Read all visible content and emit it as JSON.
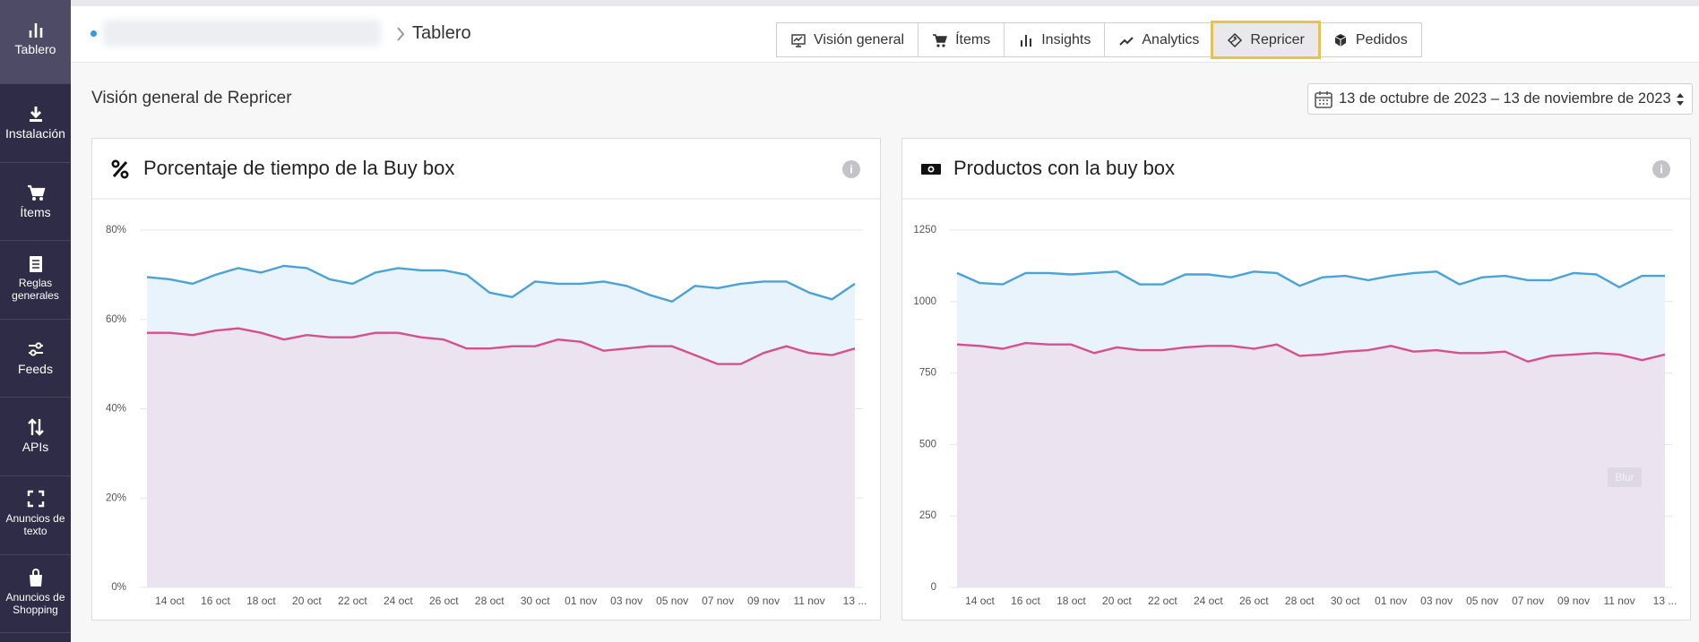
{
  "sidebar": [
    "Tablero",
    "Instalación",
    "Ítems",
    "Reglas generales",
    "Feeds",
    "APIs",
    "Anuncios de texto",
    "Anuncios de Shopping"
  ],
  "active_sidebar": 0,
  "breadcrumb": "Tablero",
  "tabs": [
    "Visión general",
    "Ítems",
    "Insights",
    "Analytics",
    "Repricer",
    "Pedidos"
  ],
  "active_tab": 4,
  "section_title": "Visión general de Repricer",
  "date_range": "13 de octubre de 2023 – 13 de noviembre de 2023",
  "chart_data": [
    {
      "type": "area",
      "title": "Porcentaje de tiempo de la Buy box",
      "categories": [
        null,
        "14 oct",
        null,
        "16 oct",
        null,
        "18 oct",
        null,
        "20 oct",
        null,
        "22 oct",
        null,
        "24 oct",
        null,
        "26 oct",
        null,
        "28 oct",
        null,
        "30 oct",
        null,
        "01 nov",
        null,
        "03 nov",
        null,
        "05 nov",
        null,
        "07 nov",
        null,
        "09 nov",
        null,
        "11 nov",
        null,
        "13 ..."
      ],
      "series": [
        {
          "color": "#4aa3d8",
          "fill": "#e9f3fc",
          "values": [
            69.5,
            69,
            68,
            70,
            71.5,
            70.5,
            72,
            71.5,
            69,
            68,
            70.5,
            71.5,
            71,
            71,
            70,
            66,
            65,
            68.5,
            68,
            68,
            68.5,
            67.5,
            65.5,
            64,
            67.5,
            67,
            68,
            68.5,
            68.5,
            66,
            64.5,
            68
          ]
        },
        {
          "color": "#d6508f",
          "fill": "#ebe3f0",
          "values": [
            57,
            57,
            56.5,
            57.5,
            58,
            57,
            55.5,
            56.5,
            56,
            56,
            57,
            57,
            56,
            55.5,
            53.5,
            53.5,
            54,
            54,
            55.5,
            55,
            53,
            53.5,
            54,
            54,
            52,
            50,
            50,
            52.5,
            54,
            52.5,
            52,
            53.5
          ]
        }
      ],
      "ylim": [
        0,
        80
      ],
      "yticks": [
        {
          "value": 0,
          "label": "0%"
        },
        {
          "value": 20,
          "label": "20%"
        },
        {
          "value": 40,
          "label": "40%"
        },
        {
          "value": 60,
          "label": "60%"
        },
        {
          "value": 80,
          "label": "80%"
        }
      ],
      "grid": true
    },
    {
      "type": "area",
      "title": "Productos con la buy box",
      "categories": [
        null,
        "14 oct",
        null,
        "16 oct",
        null,
        "18 oct",
        null,
        "20 oct",
        null,
        "22 oct",
        null,
        "24 oct",
        null,
        "26 oct",
        null,
        "28 oct",
        null,
        "30 oct",
        null,
        "01 nov",
        null,
        "03 nov",
        null,
        "05 nov",
        null,
        "07 nov",
        null,
        "09 nov",
        null,
        "11 nov",
        null,
        "13 ..."
      ],
      "series": [
        {
          "color": "#4aa3d8",
          "fill": "#e9f3fc",
          "values": [
            1100,
            1065,
            1060,
            1100,
            1100,
            1095,
            1100,
            1105,
            1060,
            1060,
            1095,
            1095,
            1085,
            1105,
            1100,
            1055,
            1085,
            1090,
            1075,
            1090,
            1100,
            1105,
            1060,
            1085,
            1090,
            1075,
            1075,
            1100,
            1095,
            1050,
            1090,
            1090
          ]
        },
        {
          "color": "#d6508f",
          "fill": "#ebe3f0",
          "values": [
            850,
            845,
            835,
            855,
            850,
            850,
            820,
            840,
            830,
            830,
            840,
            845,
            845,
            835,
            850,
            810,
            815,
            825,
            830,
            845,
            825,
            830,
            820,
            820,
            825,
            790,
            810,
            815,
            820,
            815,
            795,
            815
          ]
        }
      ],
      "ylim": [
        0,
        1250
      ],
      "yticks": [
        0,
        250,
        500,
        750,
        1000,
        1250
      ],
      "grid": true,
      "watermark": "Blur"
    }
  ]
}
